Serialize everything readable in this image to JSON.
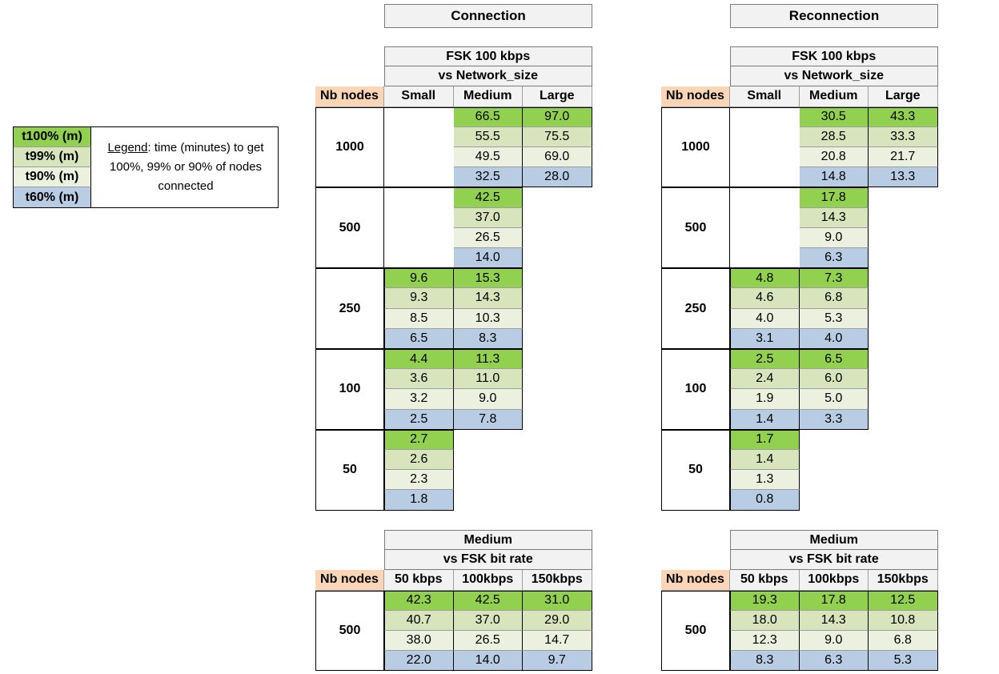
{
  "legend": {
    "items": [
      {
        "label": "t100% (m)",
        "color": "#92d050"
      },
      {
        "label": "t99% (m)",
        "color": "#d8e4bc"
      },
      {
        "label": "t90% (m)",
        "color": "#ebf1de"
      },
      {
        "label": "t60% (m)",
        "color": "#b8cce4"
      }
    ],
    "key": "Legend",
    "text": ": time (minutes) to get 100%, 99% or 90% of nodes connected"
  },
  "connection": {
    "title": "Connection",
    "fsk_table": {
      "header1": "FSK 100 kbps",
      "header2": "vs Network_size",
      "nb_nodes_label": "Nb nodes",
      "columns": [
        "Small",
        "Medium",
        "Large"
      ],
      "groups": [
        {
          "nodes": "1000",
          "small": [
            "",
            "",
            "",
            ""
          ],
          "medium": [
            "66.5",
            "55.5",
            "49.5",
            "32.5"
          ],
          "large": [
            "97.0",
            "75.5",
            "69.0",
            "28.0"
          ]
        },
        {
          "nodes": "500",
          "small": [
            "",
            "",
            "",
            ""
          ],
          "medium": [
            "42.5",
            "37.0",
            "26.5",
            "14.0"
          ],
          "large": [
            "",
            "",
            "",
            ""
          ]
        },
        {
          "nodes": "250",
          "small": [
            "9.6",
            "9.3",
            "8.5",
            "6.5"
          ],
          "medium": [
            "15.3",
            "14.3",
            "10.3",
            "8.3"
          ],
          "large": [
            "",
            "",
            "",
            ""
          ]
        },
        {
          "nodes": "100",
          "small": [
            "4.4",
            "3.6",
            "3.2",
            "2.5"
          ],
          "medium": [
            "11.3",
            "11.0",
            "9.0",
            "7.8"
          ],
          "large": [
            "",
            "",
            "",
            ""
          ]
        },
        {
          "nodes": "50",
          "small": [
            "2.7",
            "2.6",
            "2.3",
            "1.8"
          ],
          "medium": [
            "",
            "",
            "",
            ""
          ],
          "large": [
            "",
            "",
            "",
            ""
          ]
        }
      ]
    },
    "rate_table": {
      "header1": "Medium",
      "header2": "vs FSK bit rate",
      "nb_nodes_label": "Nb nodes",
      "columns": [
        "50 kbps",
        "100kbps",
        "150kbps"
      ],
      "groups": [
        {
          "nodes": "500",
          "c1": [
            "42.3",
            "40.7",
            "38.0",
            "22.0"
          ],
          "c2": [
            "42.5",
            "37.0",
            "26.5",
            "14.0"
          ],
          "c3": [
            "31.0",
            "29.0",
            "14.7",
            "9.7"
          ]
        }
      ]
    }
  },
  "reconnection": {
    "title": "Reconnection",
    "fsk_table": {
      "header1": "FSK 100 kbps",
      "header2": "vs Network_size",
      "nb_nodes_label": "Nb nodes",
      "columns": [
        "Small",
        "Medium",
        "Large"
      ],
      "groups": [
        {
          "nodes": "1000",
          "small": [
            "",
            "",
            "",
            ""
          ],
          "medium": [
            "30.5",
            "28.5",
            "20.8",
            "14.8"
          ],
          "large": [
            "43.3",
            "33.3",
            "21.7",
            "13.3"
          ]
        },
        {
          "nodes": "500",
          "small": [
            "",
            "",
            "",
            ""
          ],
          "medium": [
            "17.8",
            "14.3",
            "9.0",
            "6.3"
          ],
          "large": [
            "",
            "",
            "",
            ""
          ]
        },
        {
          "nodes": "250",
          "small": [
            "4.8",
            "4.6",
            "4.0",
            "3.1"
          ],
          "medium": [
            "7.3",
            "6.8",
            "5.3",
            "4.0"
          ],
          "large": [
            "",
            "",
            "",
            ""
          ]
        },
        {
          "nodes": "100",
          "small": [
            "2.5",
            "2.4",
            "1.9",
            "1.4"
          ],
          "medium": [
            "6.5",
            "6.0",
            "5.0",
            "3.3"
          ],
          "large": [
            "",
            "",
            "",
            ""
          ]
        },
        {
          "nodes": "50",
          "small": [
            "1.7",
            "1.4",
            "1.3",
            "0.8"
          ],
          "medium": [
            "",
            "",
            "",
            ""
          ],
          "large": [
            "",
            "",
            "",
            ""
          ]
        }
      ]
    },
    "rate_table": {
      "header1": "Medium",
      "header2": "vs FSK bit rate",
      "nb_nodes_label": "Nb nodes",
      "columns": [
        "50 kbps",
        "100kbps",
        "150kbps"
      ],
      "groups": [
        {
          "nodes": "500",
          "c1": [
            "19.3",
            "18.0",
            "12.3",
            "8.3"
          ],
          "c2": [
            "17.8",
            "14.3",
            "9.0",
            "6.3"
          ],
          "c3": [
            "12.5",
            "10.8",
            "6.8",
            "5.3"
          ]
        }
      ]
    }
  }
}
